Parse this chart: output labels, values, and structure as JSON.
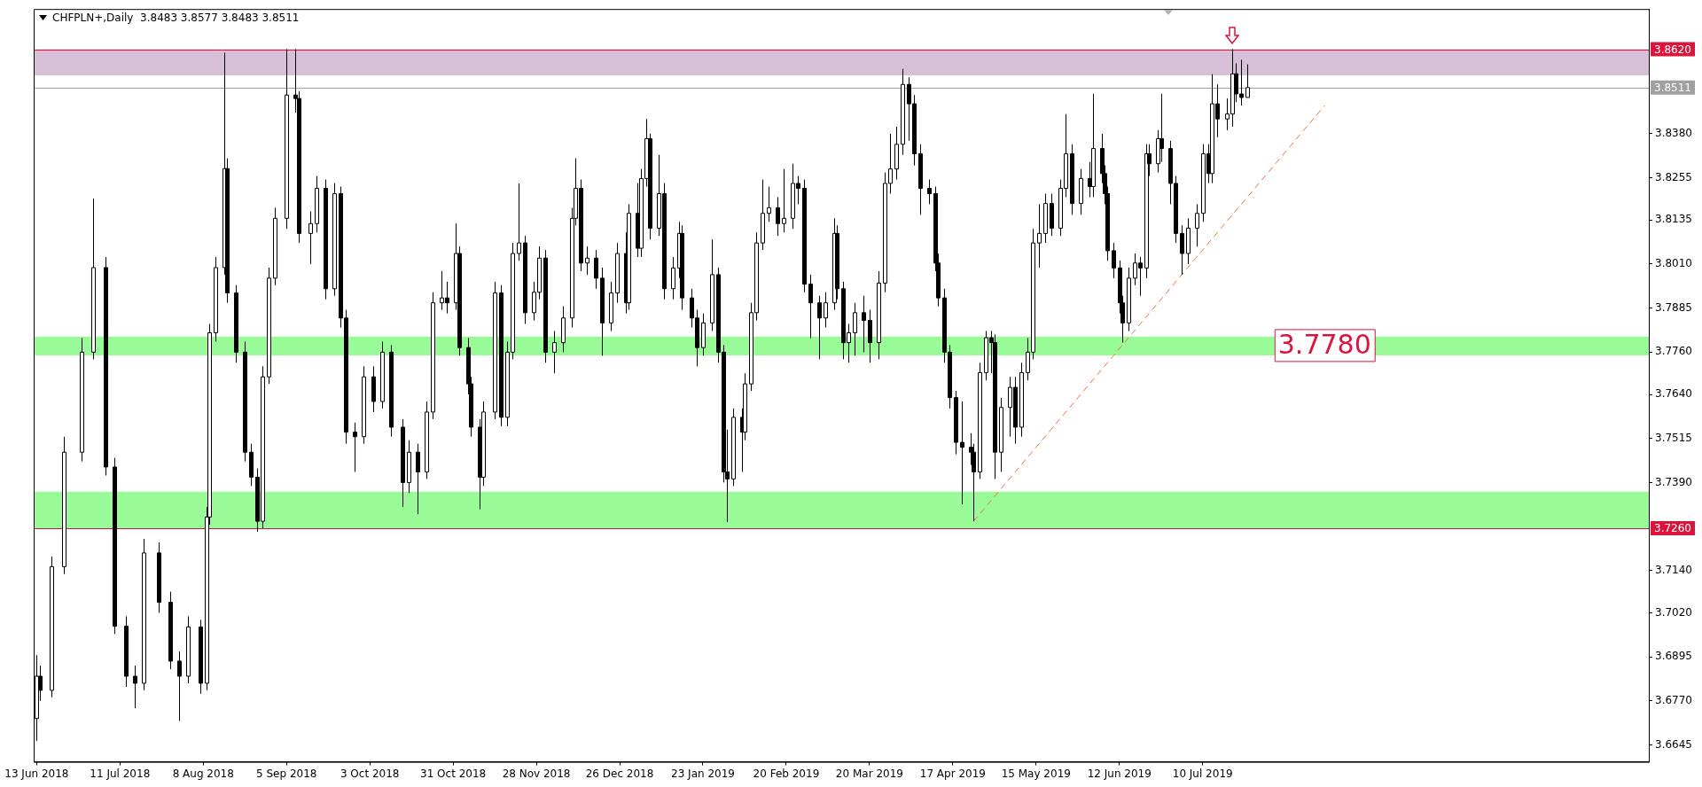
{
  "chart_data": {
    "type": "candlestick",
    "title": "CHFPLN+,Daily  3.8483 3.8577 3.8483 3.8511",
    "grid": false,
    "xlim": [
      "2018-06-12",
      "2019-12-07"
    ],
    "xticks": [
      {
        "value": "2018-06-13",
        "label": "13 Jun 2018"
      },
      {
        "value": "2018-07-11",
        "label": "11 Jul 2018"
      },
      {
        "value": "2018-08-08",
        "label": "8 Aug 2018"
      },
      {
        "value": "2018-09-05",
        "label": "5 Sep 2018"
      },
      {
        "value": "2018-10-03",
        "label": "3 Oct 2018"
      },
      {
        "value": "2018-10-31",
        "label": "31 Oct 2018"
      },
      {
        "value": "2018-11-28",
        "label": "28 Nov 2018"
      },
      {
        "value": "2018-12-26",
        "label": "26 Dec 2018"
      },
      {
        "value": "2019-01-23",
        "label": "23 Jan 2019"
      },
      {
        "value": "2019-02-20",
        "label": "20 Feb 2019"
      },
      {
        "value": "2019-03-20",
        "label": "20 Mar 2019"
      },
      {
        "value": "2019-04-17",
        "label": "17 Apr 2019"
      },
      {
        "value": "2019-05-15",
        "label": "15 May 2019"
      },
      {
        "value": "2019-06-12",
        "label": "12 Jun 2019"
      },
      {
        "value": "2019-07-10",
        "label": "10 Jul 2019"
      }
    ],
    "ylim": [
      3.6597,
      3.8734
    ],
    "yticks": [
      {
        "value": 3.6645,
        "label": "3.6645"
      },
      {
        "value": 3.677,
        "label": "3.6770"
      },
      {
        "value": 3.6895,
        "label": "3.6895"
      },
      {
        "value": 3.702,
        "label": "3.7020"
      },
      {
        "value": 3.714,
        "label": "3.7140"
      },
      {
        "value": 3.739,
        "label": "3.7390"
      },
      {
        "value": 3.7515,
        "label": "3.7515"
      },
      {
        "value": 3.764,
        "label": "3.7640"
      },
      {
        "value": 3.776,
        "label": "3.7760"
      },
      {
        "value": 3.7885,
        "label": "3.7885"
      },
      {
        "value": 3.801,
        "label": "3.8010"
      },
      {
        "value": 3.8135,
        "label": "3.8135"
      },
      {
        "value": 3.8255,
        "label": "3.8255"
      },
      {
        "value": 3.838,
        "label": "3.8380"
      }
    ],
    "ref_lines": [
      {
        "axis": "y",
        "value": 3.862,
        "label": "3.8620",
        "color": "#dc143c"
      },
      {
        "axis": "y",
        "value": 3.8511,
        "label": "3.8511",
        "color": "#a0a0a0"
      },
      {
        "axis": "y",
        "value": 3.726,
        "label": "3.7260",
        "color": "#dc143c"
      }
    ],
    "bands": [
      {
        "axis": "y",
        "from": 3.8546,
        "to": 3.862,
        "color": "#d8bfd8"
      },
      {
        "axis": "y",
        "from": 3.7751,
        "to": 3.7804,
        "label": "3.7780",
        "color": "#98fb98"
      },
      {
        "axis": "y",
        "from": 3.726,
        "to": 3.7364,
        "color": "#98fb98"
      }
    ],
    "series": [
      {
        "type": "line",
        "x": [
          "2019-04-24",
          "2019-08-20"
        ],
        "values": [
          3.728,
          3.846
        ],
        "color": "#e8743b",
        "line_style": "dashed"
      }
    ],
    "x": [
      "2018-06-13",
      "2018-06-14",
      "2018-06-18",
      "2018-06-22",
      "2018-06-28",
      "2018-07-02",
      "2018-07-06",
      "2018-07-09",
      "2018-07-13",
      "2018-07-16",
      "2018-07-19",
      "2018-07-24",
      "2018-07-28",
      "2018-07-31",
      "2018-08-03",
      "2018-08-07",
      "2018-08-09",
      "2018-08-10",
      "2018-08-12",
      "2018-08-15",
      "2018-08-16",
      "2018-08-19",
      "2018-08-22",
      "2018-08-24",
      "2018-08-26",
      "2018-08-28",
      "2018-08-30",
      "2018-09-01",
      "2018-09-05",
      "2018-09-08",
      "2018-09-09",
      "2018-09-13",
      "2018-09-15",
      "2018-09-18",
      "2018-09-21",
      "2018-09-23",
      "2018-09-25",
      "2018-09-28",
      "2018-10-01",
      "2018-10-04",
      "2018-10-07",
      "2018-10-10",
      "2018-10-14",
      "2018-10-16",
      "2018-10-19",
      "2018-10-22",
      "2018-10-24",
      "2018-10-27",
      "2018-10-29",
      "2018-11-01",
      "2018-11-02",
      "2018-11-05",
      "2018-11-06",
      "2018-11-09",
      "2018-11-10",
      "2018-11-14",
      "2018-11-16",
      "2018-11-18",
      "2018-11-20",
      "2018-11-22",
      "2018-11-24",
      "2018-11-27",
      "2018-11-29",
      "2018-12-01",
      "2018-12-04",
      "2018-12-07",
      "2018-12-10",
      "2018-12-11",
      "2018-12-13",
      "2018-12-15",
      "2018-12-18",
      "2018-12-20",
      "2018-12-23",
      "2018-12-25",
      "2018-12-28",
      "2018-12-29",
      "2019-01-01",
      "2019-01-02",
      "2019-01-04",
      "2019-01-05",
      "2019-01-08",
      "2019-01-10",
      "2019-01-13",
      "2019-01-15",
      "2019-01-16",
      "2019-01-19",
      "2019-01-21",
      "2019-01-23",
      "2019-01-26",
      "2019-01-28",
      "2019-01-30",
      "2019-01-31",
      "2019-02-02",
      "2019-02-05",
      "2019-02-06",
      "2019-02-08",
      "2019-02-10",
      "2019-02-12",
      "2019-02-14",
      "2019-02-17",
      "2019-02-19",
      "2019-02-22",
      "2019-02-24",
      "2019-02-26",
      "2019-02-28",
      "2019-03-03",
      "2019-03-05",
      "2019-03-08",
      "2019-03-09",
      "2019-03-11",
      "2019-03-13",
      "2019-03-15",
      "2019-03-18",
      "2019-03-20",
      "2019-03-23",
      "2019-03-25",
      "2019-03-27",
      "2019-03-29",
      "2019-03-31",
      "2019-04-02",
      "2019-04-04",
      "2019-04-06",
      "2019-04-09",
      "2019-04-11",
      "2019-04-12",
      "2019-04-14",
      "2019-04-16",
      "2019-04-18",
      "2019-04-20",
      "2019-04-23",
      "2019-04-24",
      "2019-04-26",
      "2019-04-28",
      "2019-04-30",
      "2019-05-01",
      "2019-05-03",
      "2019-05-06",
      "2019-05-08",
      "2019-05-10",
      "2019-05-12",
      "2019-05-14",
      "2019-05-16",
      "2019-05-18",
      "2019-05-20",
      "2019-05-23",
      "2019-05-25",
      "2019-05-27",
      "2019-05-30",
      "2019-06-02",
      "2019-06-03",
      "2019-06-06",
      "2019-06-07",
      "2019-06-08",
      "2019-06-10",
      "2019-06-12",
      "2019-06-13",
      "2019-06-15",
      "2019-06-17",
      "2019-06-19",
      "2019-06-21",
      "2019-06-22",
      "2019-06-25",
      "2019-06-26",
      "2019-06-29",
      "2019-07-01",
      "2019-07-03",
      "2019-07-05",
      "2019-07-08",
      "2019-07-10",
      "2019-07-12",
      "2019-07-13",
      "2019-07-15",
      "2019-07-18",
      "2019-07-20",
      "2019-07-21",
      "2019-07-23",
      "2019-07-25"
    ],
    "ohlc": [
      [
        3.672,
        3.69,
        3.6657,
        3.684
      ],
      [
        3.684,
        3.687,
        3.677,
        3.68
      ],
      [
        3.68,
        3.718,
        3.678,
        3.7151
      ],
      [
        3.7151,
        3.752,
        3.713,
        3.7476
      ],
      [
        3.7476,
        3.78,
        3.745,
        3.776
      ],
      [
        3.776,
        3.8196,
        3.774,
        3.8
      ],
      [
        3.8,
        3.803,
        3.741,
        3.7434
      ],
      [
        3.7434,
        3.746,
        3.696,
        3.6982
      ],
      [
        3.6982,
        3.701,
        3.681,
        3.684
      ],
      [
        3.684,
        3.687,
        3.6749,
        3.682
      ],
      [
        3.682,
        3.723,
        3.68,
        3.719
      ],
      [
        3.719,
        3.722,
        3.702,
        3.705
      ],
      [
        3.705,
        3.708,
        3.686,
        3.6883
      ],
      [
        3.6883,
        3.691,
        3.6713,
        3.684
      ],
      [
        3.684,
        3.701,
        3.682,
        3.698
      ],
      [
        3.698,
        3.7,
        3.679,
        3.682
      ],
      [
        3.682,
        3.732,
        3.68,
        3.7292
      ],
      [
        3.7292,
        3.784,
        3.727,
        3.7815
      ],
      [
        3.7815,
        3.803,
        3.779,
        3.8
      ],
      [
        3.8,
        3.861,
        3.798,
        3.8281
      ],
      [
        3.8281,
        3.831,
        3.79,
        3.7928
      ],
      [
        3.7928,
        3.795,
        3.773,
        3.776
      ],
      [
        3.776,
        3.779,
        3.745,
        3.7476
      ],
      [
        3.7476,
        3.75,
        3.738,
        3.7405
      ],
      [
        3.7405,
        3.743,
        3.725,
        3.728
      ],
      [
        3.728,
        3.772,
        3.726,
        3.769
      ],
      [
        3.769,
        3.8,
        3.767,
        3.797
      ],
      [
        3.797,
        3.817,
        3.795,
        3.814
      ],
      [
        3.814,
        3.862,
        3.811,
        3.849
      ],
      [
        3.849,
        3.862,
        3.844,
        3.848
      ],
      [
        3.848,
        3.85,
        3.807,
        3.8097
      ],
      [
        3.8097,
        3.816,
        3.801,
        3.8125
      ],
      [
        3.8125,
        3.826,
        3.81,
        3.8225
      ],
      [
        3.8225,
        3.825,
        3.791,
        3.794
      ],
      [
        3.794,
        3.824,
        3.792,
        3.821
      ],
      [
        3.821,
        3.823,
        3.783,
        3.7857
      ],
      [
        3.7857,
        3.788,
        3.75,
        3.7533
      ],
      [
        3.7533,
        3.756,
        3.742,
        3.752
      ],
      [
        3.752,
        3.772,
        3.75,
        3.769
      ],
      [
        3.769,
        3.772,
        3.759,
        3.762
      ],
      [
        3.762,
        3.779,
        3.76,
        3.776
      ],
      [
        3.776,
        3.778,
        3.752,
        3.7547
      ],
      [
        3.7547,
        3.757,
        3.7321,
        3.739
      ],
      [
        3.739,
        3.751,
        3.736,
        3.7476
      ],
      [
        3.7476,
        3.75,
        3.73,
        3.742
      ],
      [
        3.742,
        3.762,
        3.74,
        3.759
      ],
      [
        3.759,
        3.793,
        3.757,
        3.79
      ],
      [
        3.79,
        3.799,
        3.788,
        3.7914
      ],
      [
        3.7914,
        3.796,
        3.787,
        3.79
      ],
      [
        3.79,
        3.8125,
        3.788,
        3.804
      ],
      [
        3.804,
        3.806,
        3.775,
        3.7773
      ],
      [
        3.7773,
        3.78,
        3.764,
        3.767
      ],
      [
        3.767,
        3.769,
        3.752,
        3.7547
      ],
      [
        3.7547,
        3.757,
        3.7314,
        3.7405
      ],
      [
        3.7405,
        3.762,
        3.738,
        3.759
      ],
      [
        3.759,
        3.796,
        3.757,
        3.7928
      ],
      [
        3.7928,
        3.795,
        3.755,
        3.7575
      ],
      [
        3.7575,
        3.779,
        3.755,
        3.776
      ],
      [
        3.776,
        3.807,
        3.774,
        3.804
      ],
      [
        3.804,
        3.8239,
        3.802,
        3.807
      ],
      [
        3.807,
        3.809,
        3.784,
        3.7872
      ],
      [
        3.7872,
        3.796,
        3.785,
        3.793
      ],
      [
        3.793,
        3.806,
        3.791,
        3.8027
      ],
      [
        3.8027,
        3.805,
        3.773,
        3.776
      ],
      [
        3.776,
        3.782,
        3.77,
        3.7787
      ],
      [
        3.7787,
        3.789,
        3.776,
        3.7857
      ],
      [
        3.7857,
        3.817,
        3.783,
        3.814
      ],
      [
        3.814,
        3.831,
        3.812,
        3.8225
      ],
      [
        3.8225,
        3.825,
        3.799,
        3.8013
      ],
      [
        3.8013,
        3.806,
        3.798,
        3.8027
      ],
      [
        3.8027,
        3.805,
        3.794,
        3.797
      ],
      [
        3.797,
        3.8,
        3.775,
        3.7843
      ],
      [
        3.7843,
        3.796,
        3.782,
        3.7928
      ],
      [
        3.7928,
        3.807,
        3.79,
        3.804
      ],
      [
        3.804,
        3.81,
        3.787,
        3.79
      ],
      [
        3.79,
        3.818,
        3.788,
        3.8154
      ],
      [
        3.8154,
        3.824,
        3.803,
        3.8055
      ],
      [
        3.8055,
        3.828,
        3.803,
        3.8253
      ],
      [
        3.8253,
        3.8422,
        3.823,
        3.8366
      ],
      [
        3.8366,
        3.838,
        3.808,
        3.8112
      ],
      [
        3.8112,
        3.832,
        3.809,
        3.821
      ],
      [
        3.821,
        3.824,
        3.791,
        3.794
      ],
      [
        3.794,
        3.803,
        3.791,
        3.7999
      ],
      [
        3.7999,
        3.813,
        3.797,
        3.8097
      ],
      [
        3.8097,
        3.812,
        3.788,
        3.7914
      ],
      [
        3.7914,
        3.794,
        3.783,
        3.7857
      ],
      [
        3.7857,
        3.788,
        3.772,
        3.7773
      ],
      [
        3.7773,
        3.787,
        3.775,
        3.7843
      ],
      [
        3.7843,
        3.808,
        3.782,
        3.798
      ],
      [
        3.798,
        3.8,
        3.773,
        3.776
      ],
      [
        3.776,
        3.778,
        3.739,
        3.742
      ],
      [
        3.742,
        3.754,
        3.7278,
        3.74
      ],
      [
        3.74,
        3.76,
        3.738,
        3.7575
      ],
      [
        3.7575,
        3.76,
        3.742,
        3.7533
      ],
      [
        3.7533,
        3.77,
        3.751,
        3.767
      ],
      [
        3.767,
        3.79,
        3.765,
        3.7872
      ],
      [
        3.7872,
        3.81,
        3.785,
        3.807
      ],
      [
        3.807,
        3.825,
        3.805,
        3.8154
      ],
      [
        3.8154,
        3.823,
        3.813,
        3.817
      ],
      [
        3.817,
        3.82,
        3.809,
        3.8125
      ],
      [
        3.8125,
        3.828,
        3.81,
        3.814
      ],
      [
        3.814,
        3.8295,
        3.811,
        3.8239
      ],
      [
        3.8239,
        3.826,
        3.818,
        3.8225
      ],
      [
        3.8225,
        3.825,
        3.793,
        3.7953
      ],
      [
        3.7953,
        3.798,
        3.78,
        3.79
      ],
      [
        3.79,
        3.792,
        3.774,
        3.7857
      ],
      [
        3.7857,
        3.793,
        3.783,
        3.79
      ],
      [
        3.79,
        3.814,
        3.788,
        3.8097
      ],
      [
        3.8097,
        3.812,
        3.791,
        3.794
      ],
      [
        3.794,
        3.796,
        3.774,
        3.7787
      ],
      [
        3.7787,
        3.784,
        3.773,
        3.7815
      ],
      [
        3.7815,
        3.79,
        3.775,
        3.7872
      ],
      [
        3.7872,
        3.792,
        3.776,
        3.785
      ],
      [
        3.785,
        3.788,
        3.773,
        3.7787
      ],
      [
        3.7787,
        3.799,
        3.774,
        3.7956
      ],
      [
        3.7956,
        3.827,
        3.793,
        3.8239
      ],
      [
        3.8239,
        3.838,
        3.821,
        3.828
      ],
      [
        3.828,
        3.84,
        3.825,
        3.835
      ],
      [
        3.835,
        3.8564,
        3.832,
        3.852
      ],
      [
        3.852,
        3.854,
        3.836,
        3.8465
      ],
      [
        3.8465,
        3.849,
        3.829,
        3.8323
      ],
      [
        3.8323,
        3.835,
        3.815,
        3.8225
      ],
      [
        3.8225,
        3.825,
        3.818,
        3.821
      ],
      [
        3.821,
        3.823,
        3.799,
        3.8013
      ],
      [
        3.8013,
        3.804,
        3.789,
        3.7914
      ],
      [
        3.7914,
        3.794,
        3.773,
        3.776
      ],
      [
        3.776,
        3.778,
        3.76,
        3.7631
      ],
      [
        3.7631,
        3.765,
        3.747,
        3.7504
      ],
      [
        3.7504,
        3.762,
        3.7328,
        3.749
      ],
      [
        3.749,
        3.753,
        3.744,
        3.7476
      ],
      [
        3.7476,
        3.75,
        3.728,
        3.742
      ],
      [
        3.742,
        3.773,
        3.74,
        3.7702
      ],
      [
        3.7702,
        3.782,
        3.768,
        3.7801
      ],
      [
        3.7801,
        3.782,
        3.77,
        3.7787
      ],
      [
        3.7787,
        3.781,
        3.74,
        3.7476
      ],
      [
        3.7476,
        3.763,
        3.742,
        3.7603
      ],
      [
        3.7603,
        3.769,
        3.752,
        3.766
      ],
      [
        3.766,
        3.769,
        3.75,
        3.7547
      ],
      [
        3.7547,
        3.773,
        3.752,
        3.7702
      ],
      [
        3.7702,
        3.78,
        3.768,
        3.776
      ],
      [
        3.776,
        3.811,
        3.774,
        3.807
      ],
      [
        3.807,
        3.818,
        3.8,
        3.8097
      ],
      [
        3.8097,
        3.821,
        3.807,
        3.8182
      ],
      [
        3.8182,
        3.821,
        3.809,
        3.8112
      ],
      [
        3.8112,
        3.825,
        3.809,
        3.8225
      ],
      [
        3.8225,
        3.8436,
        3.82,
        3.8323
      ],
      [
        3.8323,
        3.835,
        3.815,
        3.8182
      ],
      [
        3.8182,
        3.828,
        3.815,
        3.8253
      ],
      [
        3.8253,
        3.83,
        3.82,
        3.823
      ],
      [
        3.823,
        3.8493,
        3.82,
        3.8338
      ],
      [
        3.8338,
        3.838,
        3.824,
        3.8267
      ],
      [
        3.8267,
        3.829,
        3.818,
        3.821
      ],
      [
        3.821,
        3.823,
        3.802,
        3.8048
      ],
      [
        3.8048,
        3.807,
        3.797,
        3.7999
      ],
      [
        3.7999,
        3.802,
        3.787,
        3.79
      ],
      [
        3.79,
        3.792,
        3.7787,
        3.7843
      ],
      [
        3.7843,
        3.8,
        3.782,
        3.797
      ],
      [
        3.797,
        3.804,
        3.795,
        3.8013
      ],
      [
        3.8013,
        3.803,
        3.792,
        3.7999
      ],
      [
        3.7999,
        3.835,
        3.797,
        3.8323
      ],
      [
        3.8323,
        3.835,
        3.826,
        3.8295
      ],
      [
        3.8295,
        3.839,
        3.827,
        3.8366
      ],
      [
        3.8366,
        3.8493,
        3.83,
        3.8338
      ],
      [
        3.8338,
        3.836,
        3.818,
        3.8239
      ],
      [
        3.8239,
        3.826,
        3.807,
        3.8097
      ],
      [
        3.8097,
        3.812,
        3.798,
        3.804
      ],
      [
        3.804,
        3.814,
        3.801,
        3.8112
      ],
      [
        3.8112,
        3.818,
        3.806,
        3.8154
      ],
      [
        3.8154,
        3.835,
        3.813,
        3.8323
      ],
      [
        3.8323,
        3.835,
        3.824,
        3.8267
      ],
      [
        3.8267,
        3.8549,
        3.824,
        3.8465
      ],
      [
        3.8465,
        3.852,
        3.837,
        3.8422
      ],
      [
        3.8422,
        3.848,
        3.839,
        3.8436
      ],
      [
        3.8436,
        3.862,
        3.84,
        3.855
      ],
      [
        3.855,
        3.858,
        3.847,
        3.8493
      ],
      [
        3.8493,
        3.859,
        3.846,
        3.8483
      ],
      [
        3.8483,
        3.8577,
        3.8483,
        3.8511
      ]
    ]
  }
}
